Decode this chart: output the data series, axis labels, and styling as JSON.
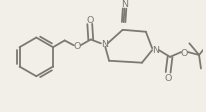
{
  "bg_color": "#f2efe9",
  "line_color": "#7a7a72",
  "line_width": 1.3,
  "font_size": 6.8,
  "text_color": "#7a7a72",
  "figw": 2.06,
  "figh": 1.13,
  "dpi": 100,
  "xlim": [
    0,
    206
  ],
  "ylim": [
    0,
    113
  ]
}
